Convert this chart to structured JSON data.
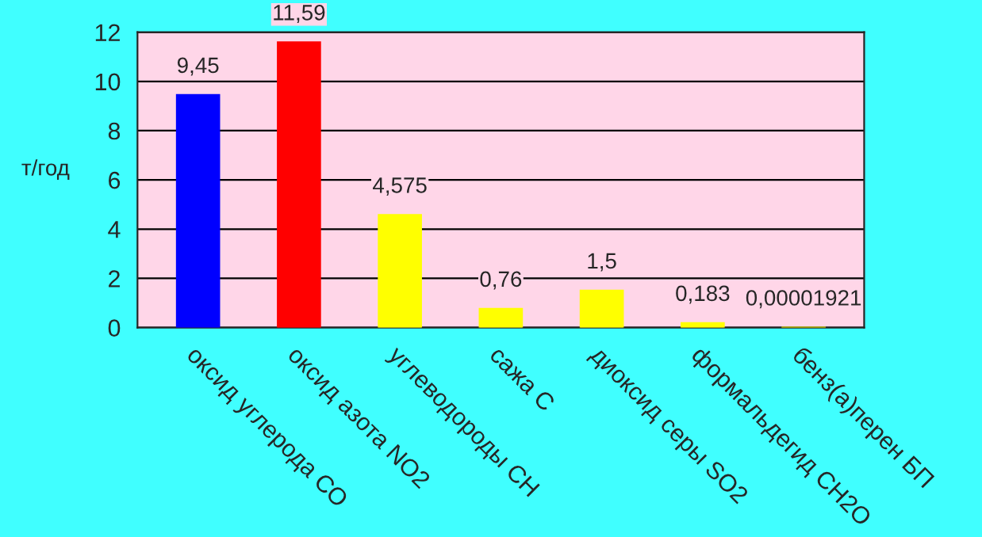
{
  "chart_data": {
    "type": "bar",
    "ylabel": "т/год",
    "categories": [
      "оксид углерода СО",
      "оксид азота NO2",
      "углеводороды СН",
      "сажа С",
      "диоксид серы SO2",
      "формальдегид СН2О",
      "бенз(а)перен БП"
    ],
    "values": [
      9.45,
      11.59,
      4.575,
      0.76,
      1.5,
      0.183,
      1.921e-05
    ],
    "colors": [
      "#0000ff",
      "#ff0000",
      "#ffff00",
      "#ffff00",
      "#ffff00",
      "#ffff00",
      "#ffff00"
    ],
    "value_labels": [
      "9,45",
      "11,59",
      "4,575",
      "0,76",
      "1,5",
      "0,183",
      "0,00001921"
    ],
    "ylim": [
      0,
      12
    ],
    "yticks": [
      0,
      2,
      4,
      6,
      8,
      10,
      12
    ],
    "grid": "y"
  }
}
